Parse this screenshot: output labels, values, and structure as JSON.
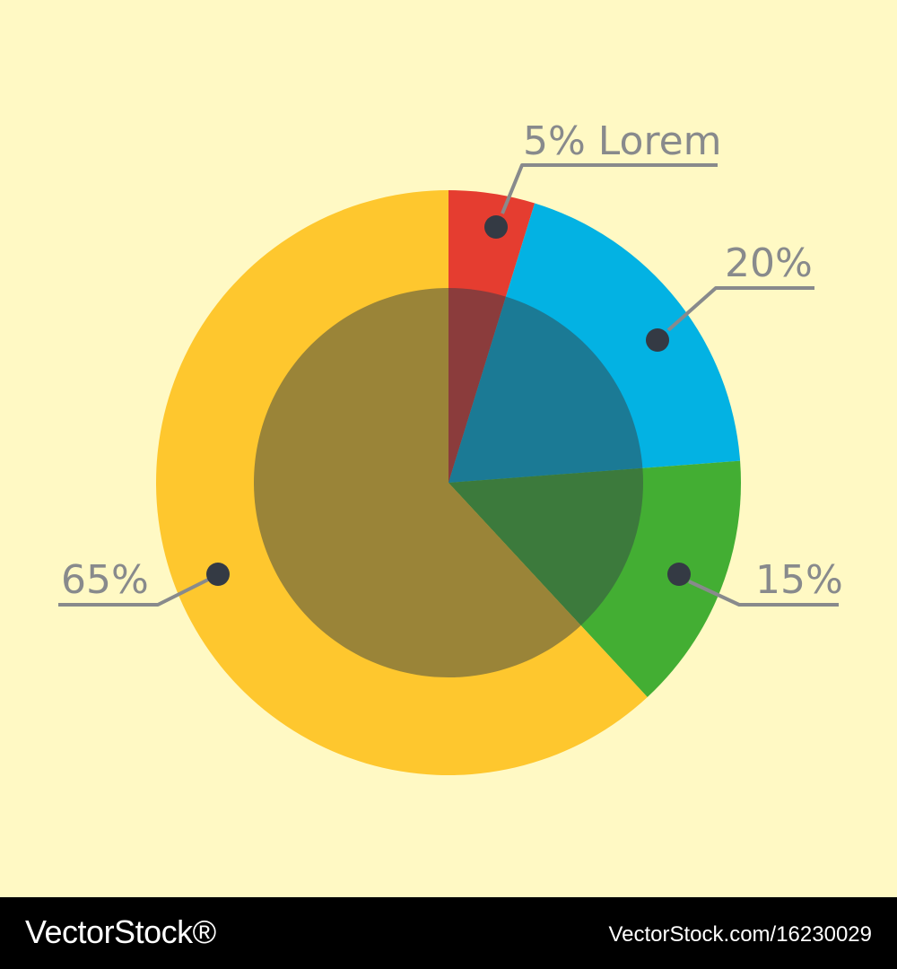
{
  "chart_data": {
    "type": "pie",
    "start_direction": "12 o'clock, clockwise",
    "slices": [
      {
        "label": "5% Lorem",
        "value": 5,
        "color": "#e53d30",
        "inner_color": "#8b3c3c"
      },
      {
        "label": "20%",
        "value": 20,
        "color": "#03b2e3",
        "inner_color": "#1b7a95"
      },
      {
        "label": "15%",
        "value": 15,
        "color": "#43ae33",
        "inner_color": "#3c7a3c"
      },
      {
        "label": "65%",
        "value": 65,
        "color": "#fec72e",
        "inner_color": "#9a8438"
      }
    ]
  },
  "colors": {
    "background": "#fff9c4",
    "label_text": "#888a8c",
    "leader_line": "#888a8c",
    "marker_dot": "#343a44",
    "footer_background": "#000000",
    "footer_text": "#ffffff"
  },
  "footer": {
    "brand": "VectorStock®",
    "url": "VectorStock.com/16230029"
  }
}
